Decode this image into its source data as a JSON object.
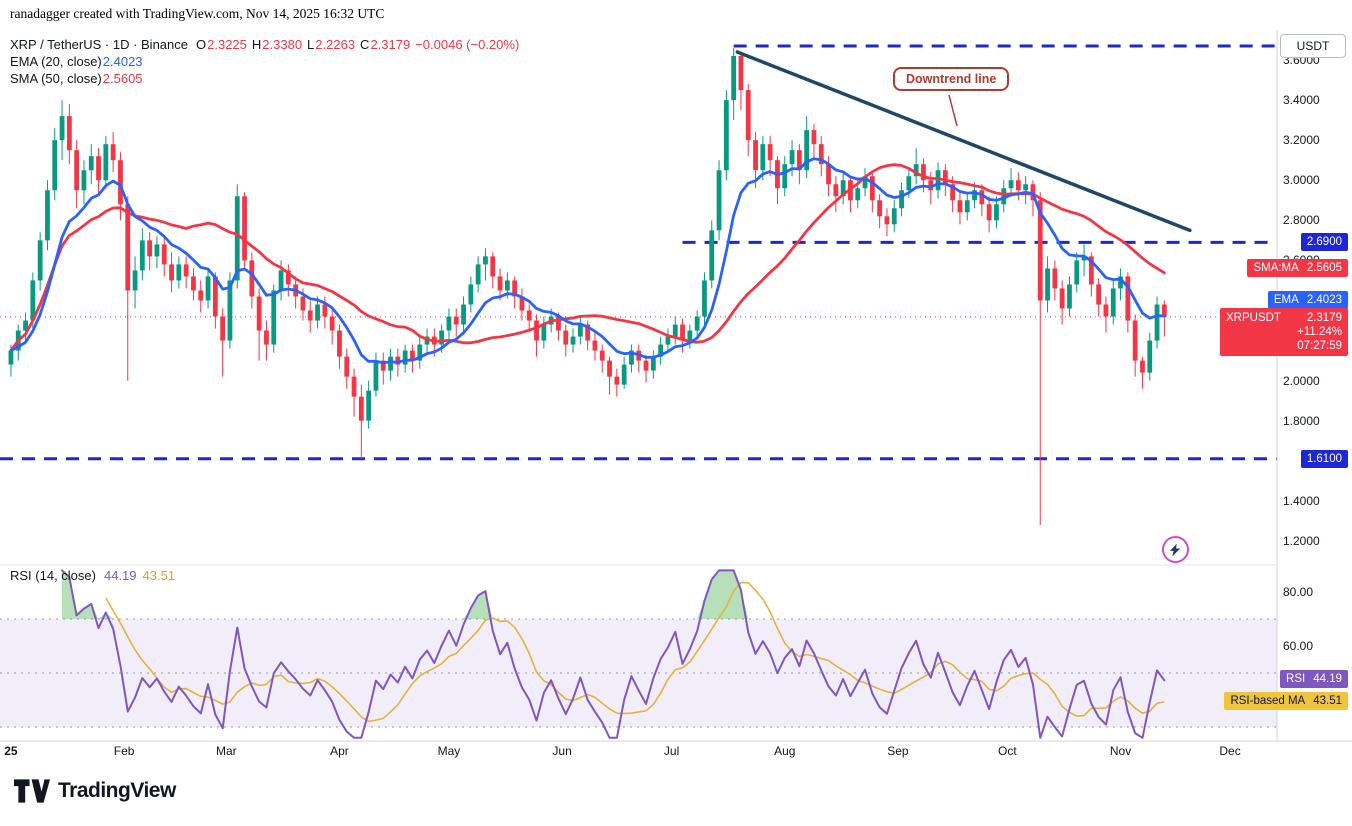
{
  "attribution": "ranadagger created with TradingView.com, Nov 14, 2025 16:32 UTC",
  "legend": {
    "title": "XRP / TetherUS · 1D · Binance",
    "ohlc": [
      {
        "label": "O",
        "value": "2.3225"
      },
      {
        "label": "H",
        "value": "2.3380"
      },
      {
        "label": "L",
        "value": "2.2263"
      },
      {
        "label": "C",
        "value": "2.3179"
      }
    ],
    "change": "−0.0046 (−0.20%)",
    "ema_label": "EMA (20, close)",
    "ema_value": "2.4023",
    "sma_label": "SMA (50, close)",
    "sma_value": "2.5605"
  },
  "rsi_legend": {
    "label": "RSI (14, close)",
    "value": "44.19",
    "ma_value": "43.51"
  },
  "callout": {
    "text": "Downtrend line"
  },
  "logo_text": "TradingView",
  "axis": {
    "currency_button": "USDT",
    "price_labels": [
      {
        "text": "3.6000",
        "price": 3.6
      },
      {
        "text": "3.4000",
        "price": 3.4
      },
      {
        "text": "3.2000",
        "price": 3.2
      },
      {
        "text": "3.0000",
        "price": 3.0
      },
      {
        "text": "2.8000",
        "price": 2.8
      },
      {
        "text": "2.6000",
        "price": 2.6
      },
      {
        "text": "2.0000",
        "price": 2.0
      },
      {
        "text": "1.8000",
        "price": 1.8
      },
      {
        "text": "1.4000",
        "price": 1.4
      },
      {
        "text": "1.2000",
        "price": 1.2
      }
    ],
    "rsi_labels": [
      {
        "text": "80.00",
        "value": 80
      },
      {
        "text": "60.00",
        "value": 60
      }
    ],
    "badges": [
      {
        "kind": "plain",
        "text": "2.6900",
        "bg": "#1E27D6",
        "fg": "#FFFFFF",
        "price": 2.69,
        "name": "resistance-level-badge"
      },
      {
        "kind": "labeled",
        "label": "SMA:MA",
        "value": "2.5605",
        "bg": "#F23645",
        "fg": "#FFFFFF",
        "price": 2.5605,
        "name": "sma-value-badge"
      },
      {
        "kind": "labeled",
        "label": "EMA",
        "value": "2.4023",
        "bg": "#2962FF",
        "fg": "#FFFFFF",
        "price": 2.4023,
        "name": "ema-value-badge"
      },
      {
        "kind": "quote",
        "label": "XRPUSDT",
        "value": "2.3179",
        "rows": [
          "+11.24%",
          "07:27:59"
        ],
        "bg": "#F23645",
        "fg": "#FFFFFF",
        "price": 2.3179,
        "name": "last-price-badge"
      },
      {
        "kind": "plain",
        "text": "1.6100",
        "bg": "#1E27D6",
        "fg": "#FFFFFF",
        "price": 1.61,
        "name": "support-level-badge"
      }
    ],
    "rsi_badges": [
      {
        "kind": "labeled",
        "label": "RSI",
        "value": "44.19",
        "bg": "#7E57C2",
        "fg": "#FFFFFF",
        "value_num": 44.19,
        "name": "rsi-value-badge"
      },
      {
        "kind": "labeled",
        "label": "RSI-based MA",
        "value": "43.51",
        "bg": "#EFC53F",
        "fg": "#131722",
        "value_num": 43.51,
        "name": "rsi-ma-value-badge"
      }
    ],
    "time_labels": [
      {
        "text": "25",
        "t": 0,
        "strong": true
      },
      {
        "text": "Feb",
        "t": 31
      },
      {
        "text": "Mar",
        "t": 59
      },
      {
        "text": "Apr",
        "t": 90
      },
      {
        "text": "May",
        "t": 120
      },
      {
        "text": "Jun",
        "t": 151
      },
      {
        "text": "Jul",
        "t": 181
      },
      {
        "text": "Aug",
        "t": 212
      },
      {
        "text": "Sep",
        "t": 243
      },
      {
        "text": "Oct",
        "t": 273
      },
      {
        "text": "Nov",
        "t": 304
      },
      {
        "text": "Dec",
        "t": 334
      }
    ]
  },
  "chart_data": {
    "type": "candlestick",
    "title": "XRP / TetherUS · 1D · Binance",
    "start_date": "2025-01-01",
    "bar_interval_days": 2,
    "last_price": 2.3179,
    "last_price_color": "#F23645",
    "price_axis_range": [
      1.08,
      3.75
    ],
    "colors": {
      "up": "#089981",
      "down": "#F23645"
    },
    "candles": [
      [
        2.08,
        2.18,
        2.02,
        2.15
      ],
      [
        2.15,
        2.28,
        2.1,
        2.25
      ],
      [
        2.25,
        2.34,
        2.18,
        2.3
      ],
      [
        2.3,
        2.54,
        2.26,
        2.5
      ],
      [
        2.5,
        2.74,
        2.45,
        2.7
      ],
      [
        2.7,
        3.0,
        2.65,
        2.95
      ],
      [
        2.95,
        3.26,
        2.9,
        3.2
      ],
      [
        3.2,
        3.4,
        3.1,
        3.32
      ],
      [
        3.32,
        3.38,
        3.08,
        3.15
      ],
      [
        3.15,
        3.2,
        2.86,
        2.95
      ],
      [
        2.95,
        3.1,
        2.88,
        3.05
      ],
      [
        3.05,
        3.18,
        2.98,
        3.12
      ],
      [
        3.12,
        3.16,
        2.92,
        3.0
      ],
      [
        3.0,
        3.22,
        2.96,
        3.18
      ],
      [
        3.18,
        3.24,
        3.04,
        3.1
      ],
      [
        3.1,
        3.14,
        2.8,
        2.88
      ],
      [
        2.88,
        2.92,
        2.0,
        2.45
      ],
      [
        2.45,
        2.62,
        2.36,
        2.55
      ],
      [
        2.55,
        2.76,
        2.5,
        2.7
      ],
      [
        2.7,
        2.74,
        2.55,
        2.62
      ],
      [
        2.62,
        2.72,
        2.56,
        2.68
      ],
      [
        2.68,
        2.72,
        2.52,
        2.58
      ],
      [
        2.58,
        2.64,
        2.44,
        2.5
      ],
      [
        2.5,
        2.62,
        2.46,
        2.58
      ],
      [
        2.58,
        2.62,
        2.46,
        2.52
      ],
      [
        2.52,
        2.56,
        2.4,
        2.45
      ],
      [
        2.45,
        2.5,
        2.34,
        2.4
      ],
      [
        2.4,
        2.56,
        2.36,
        2.52
      ],
      [
        2.52,
        2.54,
        2.26,
        2.32
      ],
      [
        2.32,
        2.36,
        2.02,
        2.2
      ],
      [
        2.2,
        2.54,
        2.16,
        2.5
      ],
      [
        2.5,
        2.98,
        2.46,
        2.92
      ],
      [
        2.92,
        2.94,
        2.55,
        2.6
      ],
      [
        2.6,
        2.64,
        2.36,
        2.42
      ],
      [
        2.42,
        2.46,
        2.1,
        2.25
      ],
      [
        2.25,
        2.3,
        2.1,
        2.18
      ],
      [
        2.18,
        2.48,
        2.14,
        2.45
      ],
      [
        2.45,
        2.6,
        2.4,
        2.55
      ],
      [
        2.55,
        2.58,
        2.42,
        2.48
      ],
      [
        2.48,
        2.52,
        2.36,
        2.42
      ],
      [
        2.42,
        2.46,
        2.3,
        2.35
      ],
      [
        2.35,
        2.4,
        2.24,
        2.3
      ],
      [
        2.3,
        2.42,
        2.26,
        2.38
      ],
      [
        2.38,
        2.42,
        2.26,
        2.32
      ],
      [
        2.32,
        2.36,
        2.18,
        2.25
      ],
      [
        2.25,
        2.28,
        2.06,
        2.12
      ],
      [
        2.12,
        2.16,
        1.96,
        2.02
      ],
      [
        2.02,
        2.06,
        1.82,
        1.92
      ],
      [
        1.92,
        1.98,
        1.61,
        1.8
      ],
      [
        1.8,
        2.0,
        1.76,
        1.95
      ],
      [
        1.95,
        2.14,
        1.92,
        2.1
      ],
      [
        2.1,
        2.14,
        1.98,
        2.05
      ],
      [
        2.05,
        2.16,
        2.0,
        2.12
      ],
      [
        2.12,
        2.16,
        2.02,
        2.08
      ],
      [
        2.08,
        2.18,
        2.04,
        2.15
      ],
      [
        2.15,
        2.18,
        2.04,
        2.1
      ],
      [
        2.1,
        2.22,
        2.06,
        2.18
      ],
      [
        2.18,
        2.26,
        2.14,
        2.22
      ],
      [
        2.22,
        2.26,
        2.12,
        2.18
      ],
      [
        2.18,
        2.28,
        2.14,
        2.25
      ],
      [
        2.25,
        2.36,
        2.21,
        2.32
      ],
      [
        2.32,
        2.36,
        2.22,
        2.28
      ],
      [
        2.28,
        2.42,
        2.24,
        2.38
      ],
      [
        2.38,
        2.52,
        2.34,
        2.48
      ],
      [
        2.48,
        2.62,
        2.44,
        2.58
      ],
      [
        2.58,
        2.66,
        2.5,
        2.62
      ],
      [
        2.62,
        2.64,
        2.46,
        2.52
      ],
      [
        2.52,
        2.56,
        2.4,
        2.45
      ],
      [
        2.45,
        2.54,
        2.41,
        2.5
      ],
      [
        2.5,
        2.52,
        2.36,
        2.42
      ],
      [
        2.42,
        2.46,
        2.3,
        2.35
      ],
      [
        2.35,
        2.38,
        2.24,
        2.3
      ],
      [
        2.3,
        2.33,
        2.12,
        2.2
      ],
      [
        2.2,
        2.32,
        2.16,
        2.28
      ],
      [
        2.28,
        2.36,
        2.24,
        2.32
      ],
      [
        2.32,
        2.34,
        2.2,
        2.25
      ],
      [
        2.25,
        2.28,
        2.12,
        2.18
      ],
      [
        2.18,
        2.26,
        2.14,
        2.22
      ],
      [
        2.22,
        2.32,
        2.18,
        2.28
      ],
      [
        2.28,
        2.3,
        2.15,
        2.2
      ],
      [
        2.2,
        2.24,
        2.1,
        2.15
      ],
      [
        2.15,
        2.18,
        2.04,
        2.1
      ],
      [
        2.1,
        2.12,
        1.93,
        2.02
      ],
      [
        2.02,
        2.06,
        1.92,
        1.98
      ],
      [
        1.98,
        2.12,
        1.96,
        2.08
      ],
      [
        2.08,
        2.18,
        2.04,
        2.15
      ],
      [
        2.15,
        2.18,
        2.04,
        2.1
      ],
      [
        2.1,
        2.13,
        1.99,
        2.05
      ],
      [
        2.05,
        2.15,
        2.01,
        2.12
      ],
      [
        2.12,
        2.22,
        2.08,
        2.18
      ],
      [
        2.18,
        2.26,
        2.14,
        2.22
      ],
      [
        2.22,
        2.32,
        2.18,
        2.28
      ],
      [
        2.28,
        2.31,
        2.14,
        2.2
      ],
      [
        2.2,
        2.28,
        2.16,
        2.25
      ],
      [
        2.25,
        2.35,
        2.21,
        2.32
      ],
      [
        2.32,
        2.54,
        2.28,
        2.5
      ],
      [
        2.5,
        2.8,
        2.46,
        2.75
      ],
      [
        2.75,
        3.1,
        2.7,
        3.05
      ],
      [
        3.05,
        3.45,
        3.0,
        3.4
      ],
      [
        3.4,
        3.66,
        3.3,
        3.62
      ],
      [
        3.62,
        3.64,
        3.35,
        3.45
      ],
      [
        3.45,
        3.48,
        3.12,
        3.2
      ],
      [
        3.2,
        3.24,
        2.96,
        3.05
      ],
      [
        3.05,
        3.22,
        3.0,
        3.18
      ],
      [
        3.18,
        3.22,
        3.02,
        3.1
      ],
      [
        3.1,
        3.12,
        2.88,
        2.96
      ],
      [
        2.96,
        3.12,
        2.92,
        3.08
      ],
      [
        3.08,
        3.2,
        3.02,
        3.15
      ],
      [
        3.15,
        3.18,
        2.98,
        3.05
      ],
      [
        3.05,
        3.32,
        3.01,
        3.25
      ],
      [
        3.25,
        3.28,
        3.1,
        3.18
      ],
      [
        3.18,
        3.22,
        3.02,
        3.08
      ],
      [
        3.08,
        3.12,
        2.92,
        2.98
      ],
      [
        2.98,
        3.02,
        2.84,
        2.92
      ],
      [
        2.92,
        3.04,
        2.88,
        3.0
      ],
      [
        3.0,
        3.02,
        2.84,
        2.9
      ],
      [
        2.9,
        3.0,
        2.86,
        2.96
      ],
      [
        2.96,
        3.06,
        2.92,
        3.02
      ],
      [
        3.02,
        3.04,
        2.84,
        2.9
      ],
      [
        2.9,
        2.93,
        2.76,
        2.82
      ],
      [
        2.82,
        2.86,
        2.72,
        2.78
      ],
      [
        2.78,
        2.9,
        2.74,
        2.86
      ],
      [
        2.86,
        2.99,
        2.82,
        2.95
      ],
      [
        2.95,
        3.06,
        2.91,
        3.02
      ],
      [
        3.02,
        3.16,
        2.98,
        3.08
      ],
      [
        3.08,
        3.11,
        2.94,
        3.0
      ],
      [
        3.0,
        3.04,
        2.88,
        2.95
      ],
      [
        2.95,
        3.09,
        2.91,
        3.05
      ],
      [
        3.05,
        3.08,
        2.92,
        2.98
      ],
      [
        2.98,
        3.02,
        2.84,
        2.9
      ],
      [
        2.9,
        2.94,
        2.78,
        2.84
      ],
      [
        2.84,
        2.94,
        2.8,
        2.9
      ],
      [
        2.9,
        2.99,
        2.86,
        2.95
      ],
      [
        2.95,
        2.98,
        2.82,
        2.88
      ],
      [
        2.88,
        2.92,
        2.74,
        2.8
      ],
      [
        2.8,
        2.92,
        2.76,
        2.88
      ],
      [
        2.88,
        3.0,
        2.84,
        2.96
      ],
      [
        2.96,
        3.06,
        2.92,
        3.0
      ],
      [
        3.0,
        3.04,
        2.9,
        2.95
      ],
      [
        2.95,
        3.02,
        2.88,
        2.98
      ],
      [
        2.98,
        3.0,
        2.82,
        2.9
      ],
      [
        2.9,
        2.94,
        1.28,
        2.4
      ],
      [
        2.4,
        2.62,
        2.34,
        2.56
      ],
      [
        2.56,
        2.6,
        2.4,
        2.46
      ],
      [
        2.46,
        2.5,
        2.28,
        2.36
      ],
      [
        2.36,
        2.52,
        2.32,
        2.48
      ],
      [
        2.48,
        2.64,
        2.44,
        2.6
      ],
      [
        2.6,
        2.68,
        2.52,
        2.62
      ],
      [
        2.62,
        2.64,
        2.42,
        2.48
      ],
      [
        2.48,
        2.51,
        2.32,
        2.38
      ],
      [
        2.38,
        2.42,
        2.24,
        2.32
      ],
      [
        2.32,
        2.5,
        2.28,
        2.46
      ],
      [
        2.46,
        2.56,
        2.4,
        2.52
      ],
      [
        2.52,
        2.54,
        2.24,
        2.3
      ],
      [
        2.3,
        2.33,
        2.02,
        2.1
      ],
      [
        2.1,
        2.12,
        1.96,
        2.04
      ],
      [
        2.04,
        2.24,
        2.0,
        2.2
      ],
      [
        2.2,
        2.42,
        2.16,
        2.38
      ],
      [
        2.38,
        2.4,
        2.22,
        2.3179
      ]
    ],
    "overlays": [
      {
        "name": "EMA20",
        "color": "#2962FF",
        "period_bars": 10,
        "last_value": 2.4023
      },
      {
        "name": "SMA50",
        "color": "#F23645",
        "period_bars": 25,
        "last_value": 2.5605
      }
    ],
    "levels": [
      {
        "price": 3.67,
        "from_day": 198,
        "color": "#1E27D6",
        "style": "dashed"
      },
      {
        "price": 2.69,
        "from_day": 184,
        "color": "#1E27D6",
        "style": "dashed"
      },
      {
        "price": 1.61,
        "from_day": -3,
        "color": "#1E27D6",
        "style": "dashed"
      }
    ],
    "trendline": {
      "from": {
        "day": 199,
        "price": 3.64
      },
      "to": {
        "day": 323,
        "price": 2.75
      },
      "color": "#1F4868",
      "label": "Downtrend line"
    },
    "rsi": {
      "period_bars": 7,
      "ma_period_bars": 7,
      "line_color": "#7E57C2",
      "ma_color": "#E4B33C",
      "band": [
        30,
        70
      ],
      "band_fill": "rgba(126,87,194,0.10)",
      "overbought_fill": "rgba(76,175,80,0.40)",
      "last": 44.19,
      "ma_last": 43.51
    }
  }
}
